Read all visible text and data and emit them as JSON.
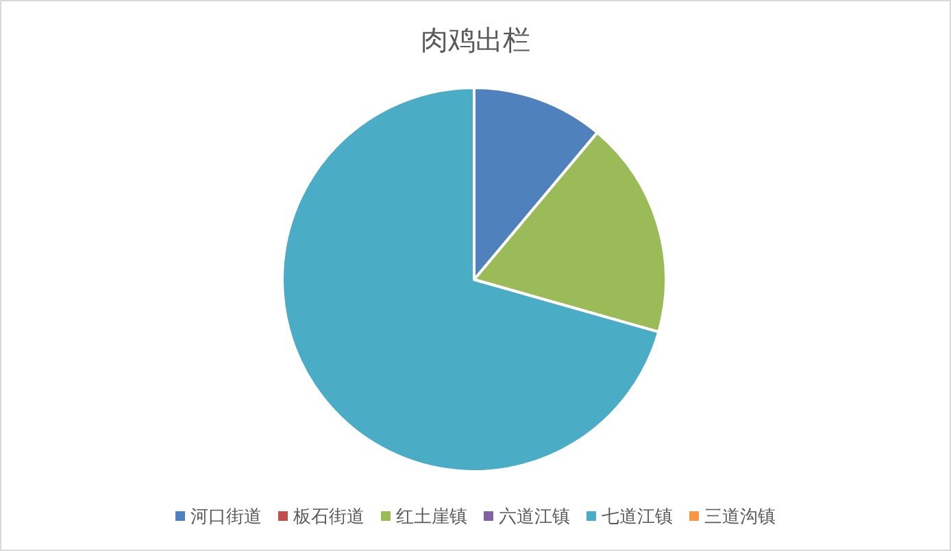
{
  "chart_data": {
    "type": "pie",
    "title": "肉鸡出栏",
    "categories": [
      "河口街道",
      "板石街道",
      "红土崖镇",
      "六道江镇",
      "七道江镇",
      "三道沟镇"
    ],
    "values": [
      11.1,
      0,
      18.3,
      0,
      70.6,
      0
    ],
    "colors": [
      "#4f81bd",
      "#c0504d",
      "#9bbb59",
      "#8064a2",
      "#4bacc6",
      "#f79646"
    ],
    "legend": "bottom"
  }
}
